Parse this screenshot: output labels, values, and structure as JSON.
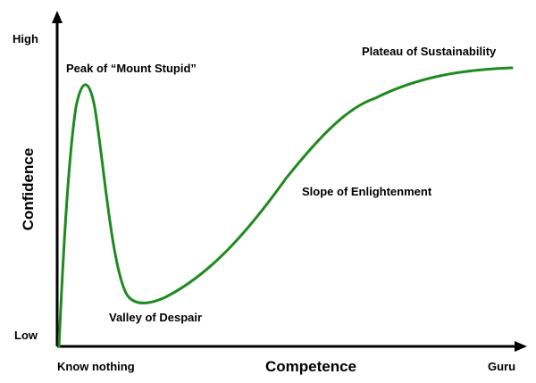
{
  "chart_data": {
    "type": "line",
    "title": "",
    "xlabel": "Competence",
    "ylabel": "Confidence",
    "x_tick_labels": [
      "Know nothing",
      "Guru"
    ],
    "y_tick_labels": [
      "High",
      "Low"
    ],
    "grid": false,
    "legend": "none",
    "series": [
      {
        "color": "#1f8a1f",
        "points_desc": "",
        "x": [
          0.0,
          0.02,
          0.04,
          0.06,
          0.08,
          0.1,
          0.13,
          0.18,
          0.25,
          0.35,
          0.45,
          0.55,
          0.65,
          0.75,
          0.85,
          0.95,
          1.0
        ],
        "y": [
          0.0,
          0.55,
          0.87,
          0.86,
          0.55,
          0.25,
          0.14,
          0.18,
          0.28,
          0.45,
          0.62,
          0.75,
          0.82,
          0.86,
          0.88,
          0.89,
          0.89
        ]
      }
    ],
    "annotations": [
      {
        "text": "Peak of “Mount Stupid”"
      },
      {
        "text": "Valley of Despair"
      },
      {
        "text": "Slope of Enlightenment"
      },
      {
        "text": "Plateau of Sustainability"
      }
    ]
  }
}
